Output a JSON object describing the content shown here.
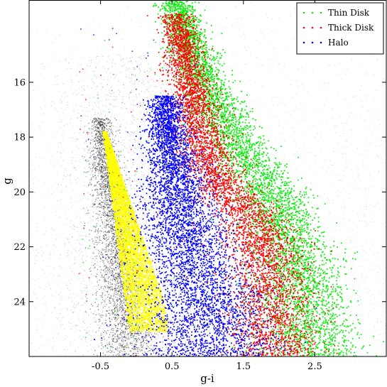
{
  "chart_data": {
    "type": "scatter",
    "xlabel": "g-i",
    "ylabel": "g",
    "xlim": [
      -1.5,
      3.5
    ],
    "ylim": [
      26.0,
      13.0
    ],
    "y_inverted": true,
    "x_ticks": [
      -0.5,
      0.5,
      1.5,
      2.5
    ],
    "x_tick_labels": [
      "-0.5",
      "0.5",
      "1.5",
      "2.5"
    ],
    "y_ticks": [
      16,
      18,
      20,
      22,
      24
    ],
    "y_tick_labels": [
      "16",
      "18",
      "20",
      "22",
      "24"
    ],
    "grid": false,
    "legend_position": "top-right",
    "series": [
      {
        "name": "Thin Disk",
        "color": "#00ee00",
        "ridge": [
          {
            "x": 0.55,
            "y": 13.0
          },
          {
            "x": 0.75,
            "y": 14.5
          },
          {
            "x": 0.95,
            "y": 16.0
          },
          {
            "x": 1.35,
            "y": 18.0
          },
          {
            "x": 1.85,
            "y": 20.0
          },
          {
            "x": 2.2,
            "y": 22.0
          },
          {
            "x": 2.35,
            "y": 24.0
          },
          {
            "x": 2.45,
            "y": 26.0
          }
        ]
      },
      {
        "name": "Thick Disk",
        "color": "#ff0000",
        "ridge": [
          {
            "x": 0.55,
            "y": 13.5
          },
          {
            "x": 0.75,
            "y": 16.0
          },
          {
            "x": 0.95,
            "y": 18.5
          },
          {
            "x": 1.25,
            "y": 20.0
          },
          {
            "x": 1.65,
            "y": 21.0
          },
          {
            "x": 1.85,
            "y": 23.0
          },
          {
            "x": 1.95,
            "y": 26.0
          }
        ]
      },
      {
        "name": "Halo",
        "color": "#0000ff",
        "ridge": [
          {
            "x": 0.4,
            "y": 17.0
          },
          {
            "x": 0.5,
            "y": 19.0
          },
          {
            "x": 0.75,
            "y": 22.0
          },
          {
            "x": 0.95,
            "y": 24.0
          },
          {
            "x": 1.05,
            "y": 26.0
          }
        ]
      }
    ],
    "background_population": {
      "color": "#000000",
      "ridge": [
        {
          "x": -0.5,
          "y": 17.5
        },
        {
          "x": -0.4,
          "y": 19.5
        },
        {
          "x": -0.3,
          "y": 21.5
        },
        {
          "x": -0.2,
          "y": 23.5
        },
        {
          "x": -0.1,
          "y": 25.5
        }
      ]
    },
    "highlighted_population": {
      "color": "#ffff00",
      "ridge": [
        {
          "x": -0.45,
          "y": 18.0
        },
        {
          "x": -0.35,
          "y": 20.5
        },
        {
          "x": -0.1,
          "y": 22.0
        },
        {
          "x": 0.1,
          "y": 23.5
        },
        {
          "x": 0.15,
          "y": 25.0
        }
      ]
    }
  }
}
